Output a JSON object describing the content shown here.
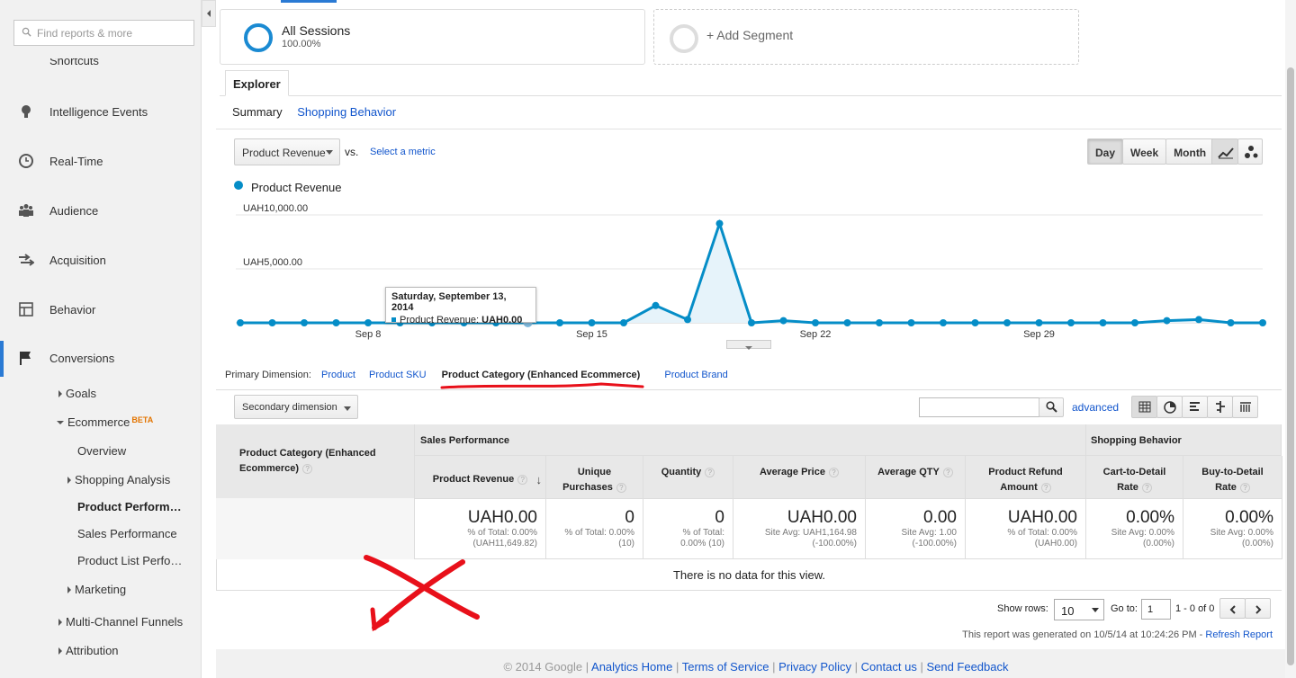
{
  "sidebar": {
    "search_placeholder": "Find reports & more",
    "shortcuts": "Shortcuts",
    "items": [
      {
        "label": "Intelligence Events",
        "icon": "lightbulb-icon"
      },
      {
        "label": "Real-Time",
        "icon": "clock-icon"
      },
      {
        "label": "Audience",
        "icon": "people-icon"
      },
      {
        "label": "Acquisition",
        "icon": "acquisition-arrows-icon"
      },
      {
        "label": "Behavior",
        "icon": "layout-icon"
      },
      {
        "label": "Conversions",
        "icon": "flag-icon"
      }
    ],
    "sub": {
      "goals": "Goals",
      "ecommerce": "Ecommerce",
      "beta": "BETA",
      "overview": "Overview",
      "shopping_analysis": "Shopping Analysis",
      "product_performance": "Product Perform…",
      "sales_performance": "Sales Performance",
      "product_list": "Product List Perfo…",
      "marketing": "Marketing",
      "multichannel": "Multi-Channel Funnels",
      "attribution": "Attribution"
    }
  },
  "segments": {
    "s1_name": "All Sessions",
    "s1_pct": "100.00%",
    "add": "+ Add Segment"
  },
  "tabs": {
    "explorer": "Explorer",
    "summary": "Summary",
    "shopping": "Shopping Behavior"
  },
  "graph": {
    "metric": "Product Revenue",
    "vs": "vs.",
    "select_metric": "Select a metric",
    "period": [
      "Day",
      "Week",
      "Month"
    ],
    "legend": "Product Revenue",
    "tooltip_date": "Saturday, September 13, 2014",
    "tooltip_label": "Product Revenue:",
    "tooltip_value": "UAH0.00"
  },
  "chart_data": {
    "type": "area",
    "title": "",
    "series": [
      {
        "name": "Product Revenue",
        "color": "#058dc7",
        "values": [
          0,
          0,
          0,
          0,
          0,
          0,
          0,
          0,
          0,
          0,
          0,
          0,
          0,
          1600,
          300,
          9200,
          0,
          200,
          0,
          0,
          0,
          0,
          0,
          0,
          0,
          0,
          0,
          0,
          0,
          200,
          300,
          0,
          0
        ]
      }
    ],
    "x_ticks": [
      {
        "index": 4,
        "label": "Sep 8"
      },
      {
        "index": 11,
        "label": "Sep 15"
      },
      {
        "index": 18,
        "label": "Sep 22"
      },
      {
        "index": 25,
        "label": "Sep 29"
      }
    ],
    "y_ticks": [
      {
        "value": 10000,
        "label": "UAH10,000.00"
      },
      {
        "value": 5000,
        "label": "UAH5,000.00"
      }
    ],
    "ylim": [
      0,
      10000
    ],
    "grid": true,
    "highlight_index": 9
  },
  "dimension": {
    "label": "Primary Dimension:",
    "opts": [
      "Product",
      "Product SKU",
      "Product Category (Enhanced Ecommerce)",
      "Product Brand"
    ]
  },
  "toolbar": {
    "secondary": "Secondary dimension",
    "advanced": "advanced"
  },
  "table": {
    "col0": "Product Category (Enhanced Ecommerce)",
    "group1": "Sales Performance",
    "group2": "Shopping Behavior",
    "headers": [
      "Product Revenue",
      "Unique Purchases",
      "Quantity",
      "Average Price",
      "Average QTY",
      "Product Refund Amount",
      "Cart-to-Detail Rate",
      "Buy-to-Detail Rate"
    ],
    "totals": [
      {
        "big": "UAH0.00",
        "l1": "% of Total: 0.00%",
        "l2": "(UAH11,649.82)"
      },
      {
        "big": "0",
        "l1": "% of Total: 0.00%",
        "l2": "(10)"
      },
      {
        "big": "0",
        "l1": "% of Total:",
        "l2": "0.00% (10)"
      },
      {
        "big": "UAH0.00",
        "l1": "Site Avg: UAH1,164.98",
        "l2": "(-100.00%)"
      },
      {
        "big": "0.00",
        "l1": "Site Avg: 1.00",
        "l2": "(-100.00%)"
      },
      {
        "big": "UAH0.00",
        "l1": "% of Total: 0.00%",
        "l2": "(UAH0.00)"
      },
      {
        "big": "0.00%",
        "l1": "Site Avg: 0.00%",
        "l2": "(0.00%)"
      },
      {
        "big": "0.00%",
        "l1": "Site Avg: 0.00%",
        "l2": "(0.00%)"
      }
    ],
    "empty": "There is no data for this view."
  },
  "pager": {
    "show_rows": "Show rows:",
    "rows": "10",
    "goto": "Go to:",
    "page": "1",
    "range": "1 - 0 of 0"
  },
  "report": {
    "generated": "This report was generated on 10/5/14 at 10:24:26 PM -",
    "refresh": "Refresh Report"
  },
  "footer": {
    "copyright": "© 2014 Google",
    "links": [
      "Analytics Home",
      "Terms of Service",
      "Privacy Policy",
      "Contact us",
      "Send Feedback"
    ]
  }
}
